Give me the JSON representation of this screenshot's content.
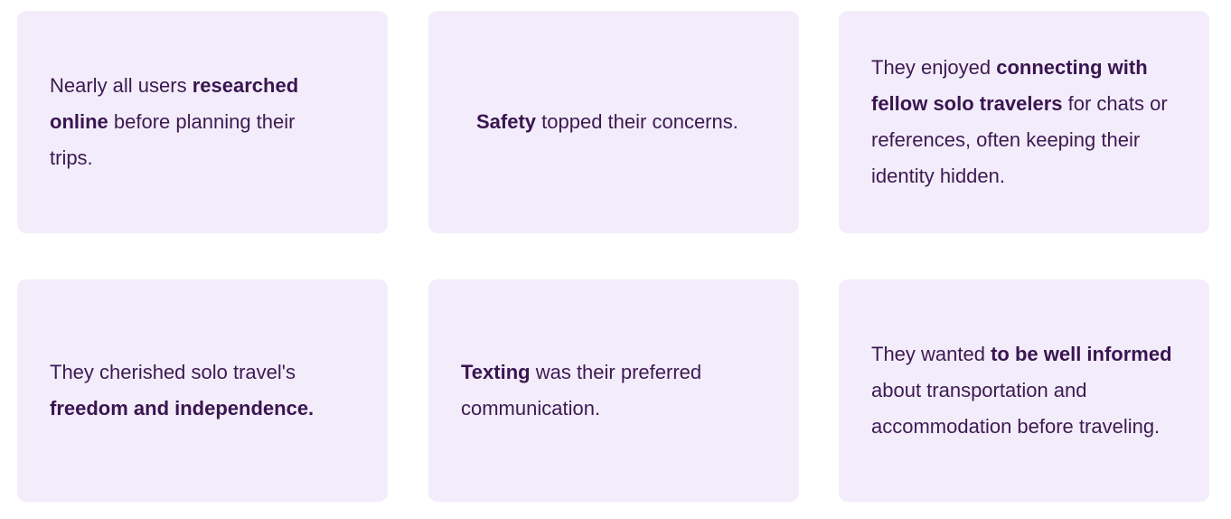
{
  "cards": [
    {
      "parts": [
        {
          "text": "Nearly all users ",
          "bold": false
        },
        {
          "text": "researched online",
          "bold": true
        },
        {
          "text": " before planning their trips.",
          "bold": false
        }
      ]
    },
    {
      "parts": [
        {
          "text": "Safety",
          "bold": true
        },
        {
          "text": " topped their concerns.",
          "bold": false
        }
      ]
    },
    {
      "parts": [
        {
          "text": "They enjoyed ",
          "bold": false
        },
        {
          "text": "connecting with fellow solo travelers",
          "bold": true
        },
        {
          "text": " for chats or references, often keeping their identity hidden.",
          "bold": false
        }
      ]
    },
    {
      "parts": [
        {
          "text": "They cherished solo travel's ",
          "bold": false
        },
        {
          "text": "freedom and independence.",
          "bold": true
        }
      ]
    },
    {
      "parts": [
        {
          "text": "Texting",
          "bold": true
        },
        {
          "text": " was their preferred communication.",
          "bold": false
        }
      ]
    },
    {
      "parts": [
        {
          "text": "They wanted ",
          "bold": false
        },
        {
          "text": "to be well informed",
          "bold": true
        },
        {
          "text": " about transportation and accommodation before traveling.",
          "bold": false
        }
      ]
    }
  ],
  "colors": {
    "card_background": "#f3edfb",
    "text": "#3d1a52",
    "bold_text": "#3a1550",
    "page_background": "#ffffff"
  }
}
